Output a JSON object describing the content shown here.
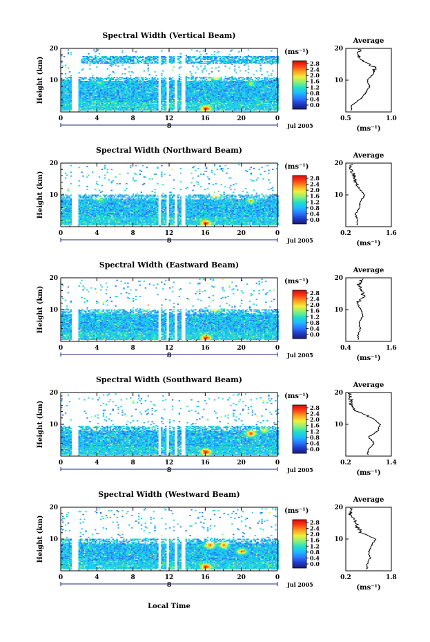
{
  "figure": {
    "xlabel": "Local Time",
    "date_label": "Jul 2005",
    "day_label": "8",
    "colorbar_unit": "(ms⁻¹)",
    "colorbar_ticks": [
      "0.0",
      "0.4",
      "0.8",
      "1.2",
      "1.6",
      "2.0",
      "2.4",
      "2.8"
    ],
    "colorbar_colors": [
      "#1a1a78",
      "#1e3cc8",
      "#2a78ff",
      "#1ebcff",
      "#22e0c8",
      "#8cf078",
      "#f0f03c",
      "#ffa020",
      "#ff3c14",
      "#d20a0a"
    ],
    "avg_title": "Average",
    "avg_unit": "(ms⁻¹)"
  },
  "chart_data": [
    {
      "type": "heatmap",
      "title": "Spectral Width (Vertical Beam)",
      "ylabel": "Height (km)",
      "xlim": [
        0,
        24
      ],
      "ylim": [
        0,
        20
      ],
      "xticks": [
        "0",
        "4",
        "8",
        "12",
        "16",
        "20",
        "0"
      ],
      "yticks": [
        "10",
        "20"
      ],
      "colorbar_range": [
        0,
        2.8
      ],
      "data_gaps_hours": [
        [
          1.2,
          1.9
        ],
        [
          10.8,
          11.1
        ],
        [
          11.6,
          11.9
        ],
        [
          12.6,
          12.9
        ],
        [
          13.3,
          13.7
        ]
      ],
      "hotspots": [
        {
          "x": 16,
          "y": 1.0,
          "value": 2.8
        },
        {
          "x": 17.1,
          "y": 11,
          "value": 2.4
        },
        {
          "x": 21,
          "y": 9,
          "value": 1.8
        },
        {
          "x": 4.3,
          "y": 9,
          "value": 1.6
        }
      ],
      "profile": {
        "title": "Average",
        "xlabel": "(ms⁻¹)",
        "xticks": [
          "0.5",
          "1.0"
        ],
        "xlim": [
          0.5,
          1.0
        ],
        "height_km": [
          2,
          4,
          6,
          8,
          10,
          12,
          14,
          16,
          18,
          20
        ],
        "width": [
          0.56,
          0.66,
          0.72,
          0.76,
          0.74,
          0.8,
          0.82,
          0.7,
          0.62,
          0.66
        ]
      }
    },
    {
      "type": "heatmap",
      "title": "Spectral Width (Northward Beam)",
      "ylabel": "Height (km)",
      "xlim": [
        0,
        24
      ],
      "ylim": [
        0,
        20
      ],
      "xticks": [
        "0",
        "4",
        "8",
        "12",
        "16",
        "20",
        "0"
      ],
      "yticks": [
        "10",
        "20"
      ],
      "colorbar_range": [
        0,
        2.8
      ],
      "data_gaps_hours": [
        [
          1.2,
          1.9
        ],
        [
          10.8,
          11.1
        ],
        [
          11.6,
          11.9
        ],
        [
          12.6,
          12.9
        ],
        [
          13.3,
          13.7
        ]
      ],
      "hotspots": [
        {
          "x": 16,
          "y": 1.0,
          "value": 2.8
        },
        {
          "x": 17.1,
          "y": 10,
          "value": 2.4
        },
        {
          "x": 21,
          "y": 8,
          "value": 2.0
        },
        {
          "x": 4.3,
          "y": 8.5,
          "value": 1.8
        }
      ],
      "profile": {
        "title": "Average",
        "xlabel": "(ms⁻¹)",
        "xticks": [
          "0.2",
          "1.6"
        ],
        "xlim": [
          0.2,
          1.6
        ],
        "height_km": [
          2,
          4,
          6,
          8,
          10,
          12,
          14,
          16,
          18,
          20
        ],
        "width": [
          0.55,
          0.5,
          0.62,
          0.65,
          0.78,
          0.6,
          0.5,
          0.45,
          0.35,
          0.4
        ]
      }
    },
    {
      "type": "heatmap",
      "title": "Spectral Width (Eastward Beam)",
      "ylabel": "Height (km)",
      "xlim": [
        0,
        24
      ],
      "ylim": [
        0,
        20
      ],
      "xticks": [
        "0",
        "4",
        "8",
        "12",
        "16",
        "20",
        "0"
      ],
      "yticks": [
        "10",
        "20"
      ],
      "colorbar_range": [
        0,
        2.8
      ],
      "data_gaps_hours": [
        [
          1.2,
          1.9
        ],
        [
          10.8,
          11.1
        ],
        [
          11.6,
          11.9
        ],
        [
          12.6,
          12.9
        ],
        [
          13.3,
          13.7
        ]
      ],
      "hotspots": [
        {
          "x": 16,
          "y": 1.0,
          "value": 2.8
        },
        {
          "x": 17.1,
          "y": 10,
          "value": 2.2
        },
        {
          "x": 9.5,
          "y": 10.5,
          "value": 2.4
        },
        {
          "x": 4.3,
          "y": 9,
          "value": 1.6
        }
      ],
      "profile": {
        "title": "Average",
        "xlabel": "(ms⁻¹)",
        "xticks": [
          "0.4",
          "1.6"
        ],
        "xlim": [
          0.4,
          1.6
        ],
        "height_km": [
          2,
          4,
          6,
          8,
          10,
          12,
          14,
          16,
          18,
          20
        ],
        "width": [
          0.72,
          0.78,
          0.75,
          0.85,
          0.8,
          0.7,
          0.9,
          0.8,
          0.75,
          0.85
        ]
      }
    },
    {
      "type": "heatmap",
      "title": "Spectral Width (Southward Beam)",
      "ylabel": "Height (km)",
      "xlim": [
        0,
        24
      ],
      "ylim": [
        0,
        20
      ],
      "xticks": [
        "0",
        "4",
        "8",
        "12",
        "16",
        "20",
        "0"
      ],
      "yticks": [
        "10",
        "20"
      ],
      "colorbar_range": [
        0,
        2.8
      ],
      "data_gaps_hours": [
        [
          1.2,
          1.9
        ],
        [
          10.8,
          11.1
        ],
        [
          11.6,
          11.9
        ],
        [
          12.6,
          12.9
        ],
        [
          13.3,
          13.7
        ]
      ],
      "hotspots": [
        {
          "x": 16,
          "y": 1.2,
          "value": 2.8
        },
        {
          "x": 21,
          "y": 7,
          "value": 2.6
        },
        {
          "x": 22.5,
          "y": 8,
          "value": 2.0
        }
      ],
      "profile": {
        "title": "Average",
        "xlabel": "(ms⁻¹)",
        "xticks": [
          "0.2",
          "1.4"
        ],
        "xlim": [
          0.2,
          1.4
        ],
        "height_km": [
          2,
          4,
          6,
          8,
          10,
          12,
          14,
          16,
          18,
          20
        ],
        "width": [
          0.78,
          0.95,
          0.8,
          1.05,
          1.1,
          0.9,
          0.5,
          0.35,
          0.32,
          0.3
        ]
      }
    },
    {
      "type": "heatmap",
      "title": "Spectral Width (Westward Beam)",
      "ylabel": "Height (km)",
      "xlim": [
        0,
        24
      ],
      "ylim": [
        0,
        20
      ],
      "xticks": [
        "0",
        "4",
        "8",
        "12",
        "16",
        "20",
        "0"
      ],
      "yticks": [
        "10",
        "20"
      ],
      "colorbar_range": [
        0,
        2.8
      ],
      "data_gaps_hours": [
        [
          1.2,
          1.9
        ],
        [
          10.8,
          11.1
        ],
        [
          11.6,
          11.9
        ],
        [
          12.6,
          12.9
        ],
        [
          13.3,
          13.7
        ]
      ],
      "hotspots": [
        {
          "x": 16,
          "y": 1.2,
          "value": 2.8
        },
        {
          "x": 16.5,
          "y": 8,
          "value": 2.6
        },
        {
          "x": 20,
          "y": 6,
          "value": 2.4
        },
        {
          "x": 18,
          "y": 8,
          "value": 2.4
        }
      ],
      "profile": {
        "title": "Average",
        "xlabel": "(ms⁻¹)",
        "xticks": [
          "0.2",
          "1.8"
        ],
        "xlim": [
          0.2,
          1.8
        ],
        "height_km": [
          2,
          4,
          6,
          8,
          10,
          12,
          14,
          16,
          18,
          20
        ],
        "width": [
          0.95,
          1.05,
          1.0,
          1.1,
          1.25,
          0.75,
          0.6,
          0.5,
          0.35,
          0.38
        ]
      }
    }
  ]
}
